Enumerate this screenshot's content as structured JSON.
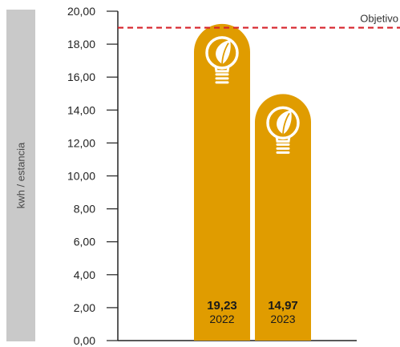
{
  "chart_data": {
    "type": "bar",
    "title": "",
    "ylabel": "kwh / estancia",
    "xlabel": "",
    "categories": [
      "2022",
      "2023"
    ],
    "values": [
      19.23,
      14.97
    ],
    "value_labels": [
      "19,23",
      "14,97"
    ],
    "ylim": [
      0,
      20
    ],
    "yticks": [
      "0,00",
      "2,00",
      "4,00",
      "6,00",
      "8,00",
      "10,00",
      "12,00",
      "14,00",
      "16,00",
      "18,00",
      "20,00"
    ],
    "target": {
      "label": "Objetivo",
      "value": 19.0,
      "color": "#d6222a"
    },
    "bar_color": "#e09c00",
    "icon": "lightbulb-leaf-icon",
    "grid": false
  }
}
